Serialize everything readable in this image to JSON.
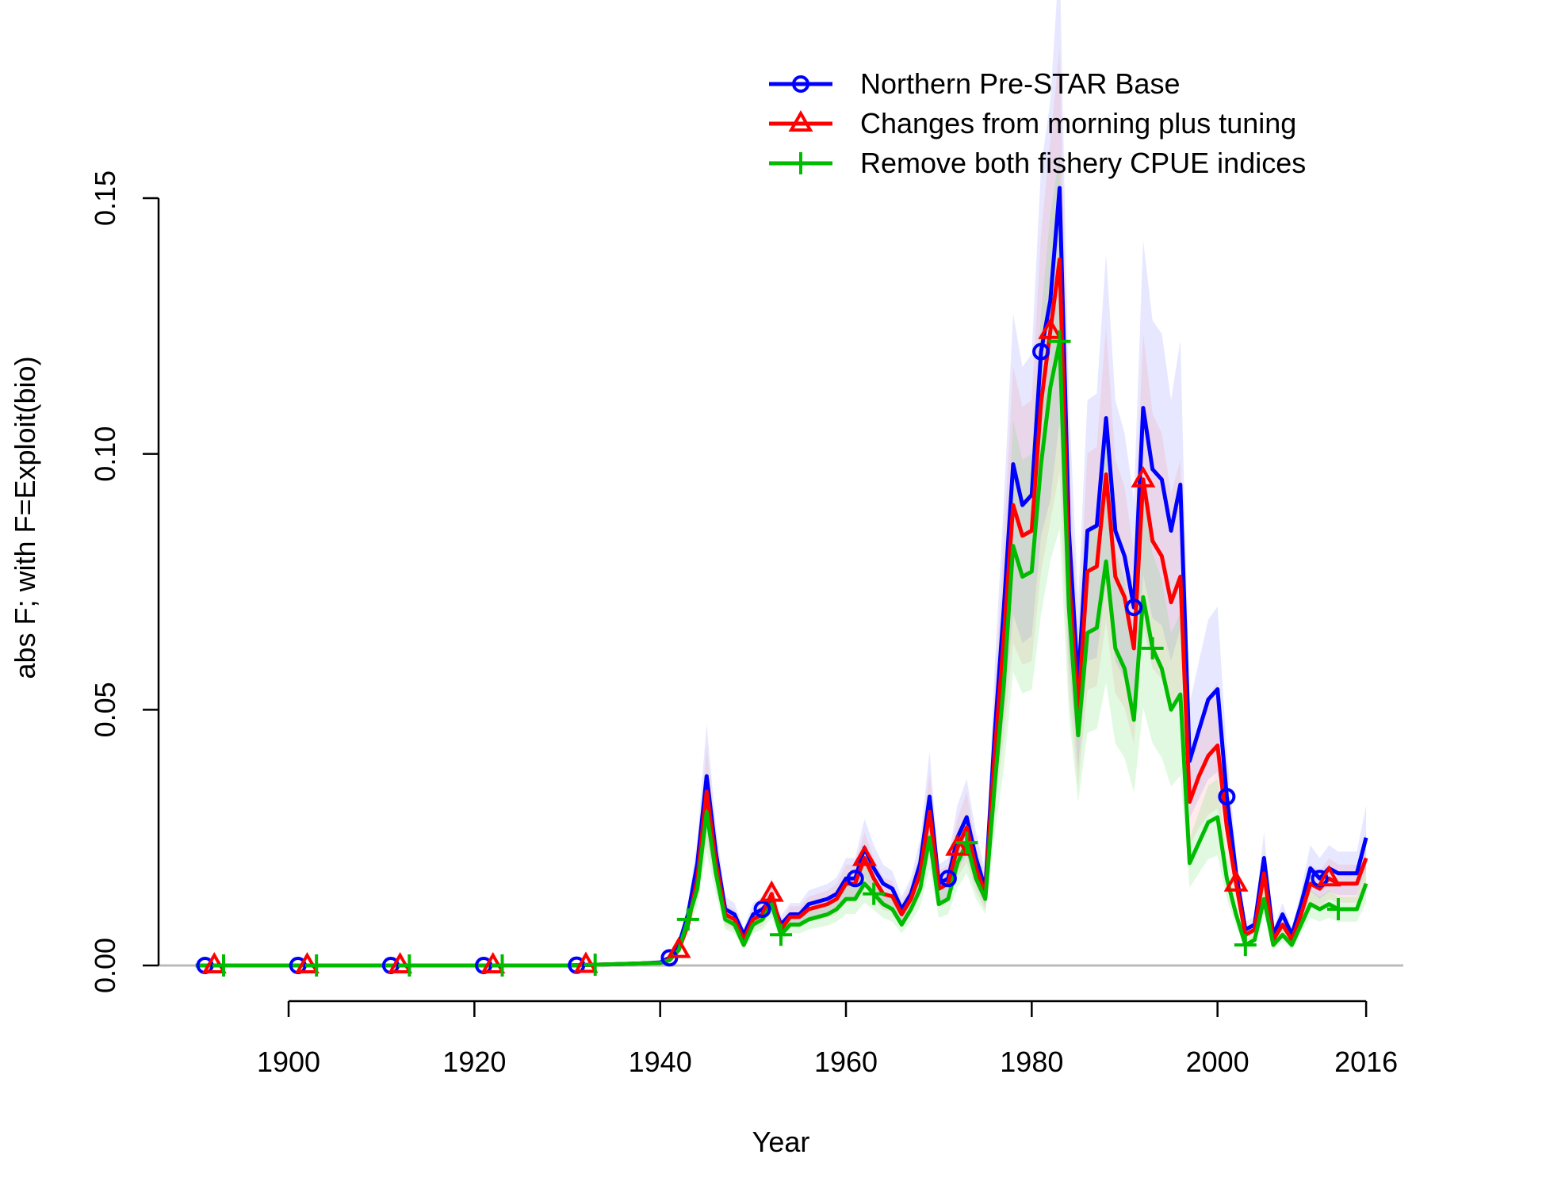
{
  "chart_data": {
    "type": "line",
    "title": "",
    "xlabel": "Year",
    "ylabel": "abs F; with F=Exploit(bio)",
    "xlim": [
      1886,
      2020
    ],
    "ylim": [
      0,
      0.15
    ],
    "x_ticks": [
      1900,
      1920,
      1940,
      1960,
      1980,
      2000,
      2016
    ],
    "x_tick_labels": [
      "1900",
      "1920",
      "1940",
      "1960",
      "1980",
      "2000",
      "2016"
    ],
    "y_ticks": [
      0,
      0.05,
      0.1,
      0.15
    ],
    "y_tick_labels": [
      "0.00",
      "0.05",
      "0.10",
      "0.15"
    ],
    "grid": false,
    "legend_position": "top-right",
    "zero_line": true,
    "x": [
      1890,
      1892,
      1894,
      1896,
      1898,
      1900,
      1902,
      1904,
      1906,
      1908,
      1910,
      1912,
      1914,
      1916,
      1918,
      1920,
      1922,
      1924,
      1926,
      1928,
      1930,
      1932,
      1934,
      1936,
      1938,
      1940,
      1941,
      1942,
      1943,
      1944,
      1945,
      1946,
      1947,
      1948,
      1949,
      1950,
      1951,
      1952,
      1953,
      1954,
      1955,
      1956,
      1957,
      1958,
      1959,
      1960,
      1961,
      1962,
      1963,
      1964,
      1965,
      1966,
      1967,
      1968,
      1969,
      1970,
      1971,
      1972,
      1973,
      1974,
      1975,
      1976,
      1977,
      1978,
      1979,
      1980,
      1981,
      1982,
      1983,
      1984,
      1985,
      1986,
      1987,
      1988,
      1989,
      1990,
      1991,
      1992,
      1993,
      1994,
      1995,
      1996,
      1997,
      1998,
      1999,
      2000,
      2001,
      2002,
      2003,
      2004,
      2005,
      2006,
      2007,
      2008,
      2009,
      2010,
      2011,
      2012,
      2013,
      2014,
      2015,
      2016
    ],
    "series": [
      {
        "name": "Northern Pre-STAR Base",
        "color": "#0000ff",
        "marker": "circle",
        "marker_years": [
          1891,
          1901,
          1911,
          1921,
          1931,
          1941,
          1951,
          1961,
          1971,
          1981,
          1991,
          2001,
          2011
        ],
        "values": [
          0,
          0,
          0,
          0,
          0,
          0,
          0,
          0,
          0,
          0,
          0,
          0,
          0,
          0,
          0,
          0,
          0,
          0,
          0,
          0,
          0,
          0.0001,
          0.0002,
          0.0003,
          0.0004,
          0.0006,
          0.0015,
          0.004,
          0.01,
          0.02,
          0.037,
          0.022,
          0.011,
          0.01,
          0.006,
          0.01,
          0.011,
          0.013,
          0.008,
          0.01,
          0.01,
          0.012,
          0.0125,
          0.013,
          0.014,
          0.017,
          0.017,
          0.023,
          0.019,
          0.016,
          0.015,
          0.011,
          0.014,
          0.02,
          0.033,
          0.016,
          0.017,
          0.025,
          0.029,
          0.021,
          0.015,
          0.045,
          0.07,
          0.098,
          0.09,
          0.092,
          0.12,
          0.13,
          0.152,
          0.085,
          0.055,
          0.085,
          0.086,
          0.107,
          0.085,
          0.08,
          0.07,
          0.109,
          0.097,
          0.095,
          0.085,
          0.094,
          0.04,
          0.046,
          0.052,
          0.054,
          0.033,
          0.018,
          0.007,
          0.008,
          0.021,
          0.006,
          0.01,
          0.006,
          0.012,
          0.019,
          0.017,
          0.019,
          0.018,
          0.018,
          0.018,
          0.025
        ]
      },
      {
        "name": "Changes from morning plus tuning",
        "color": "#ff0000",
        "marker": "triangle",
        "marker_years": [
          1892,
          1902,
          1912,
          1922,
          1932,
          1942,
          1952,
          1962,
          1972,
          1982,
          1992,
          2002,
          2012
        ],
        "values": [
          0,
          0,
          0,
          0,
          0,
          0,
          0,
          0,
          0,
          0,
          0,
          0,
          0,
          0,
          0,
          0,
          0,
          0,
          0,
          0,
          0,
          0.0001,
          0.0002,
          0.0003,
          0.0004,
          0.0005,
          0.0012,
          0.003,
          0.008,
          0.017,
          0.034,
          0.02,
          0.01,
          0.009,
          0.005,
          0.009,
          0.01,
          0.014,
          0.007,
          0.0095,
          0.0095,
          0.011,
          0.0115,
          0.012,
          0.013,
          0.016,
          0.016,
          0.021,
          0.017,
          0.014,
          0.0135,
          0.01,
          0.013,
          0.018,
          0.03,
          0.015,
          0.016,
          0.023,
          0.027,
          0.019,
          0.014,
          0.041,
          0.064,
          0.09,
          0.084,
          0.085,
          0.11,
          0.124,
          0.138,
          0.076,
          0.05,
          0.077,
          0.078,
          0.096,
          0.076,
          0.072,
          0.062,
          0.095,
          0.083,
          0.08,
          0.071,
          0.076,
          0.032,
          0.037,
          0.041,
          0.043,
          0.027,
          0.016,
          0.006,
          0.007,
          0.018,
          0.005,
          0.008,
          0.005,
          0.01,
          0.016,
          0.015,
          0.017,
          0.016,
          0.016,
          0.016,
          0.021
        ]
      },
      {
        "name": "Remove both fishery CPUE indices",
        "color": "#00bb00",
        "marker": "plus",
        "marker_years": [
          1893,
          1903,
          1913,
          1923,
          1933,
          1943,
          1953,
          1963,
          1973,
          1983,
          1993,
          2003,
          2013
        ],
        "values": [
          0,
          0,
          0,
          0,
          0,
          0,
          0,
          0,
          0,
          0,
          0,
          0,
          0,
          0,
          0,
          0,
          0,
          0,
          0,
          0,
          0,
          0.0001,
          0.0002,
          0.0003,
          0.0004,
          0.0005,
          0.001,
          0.003,
          0.009,
          0.015,
          0.03,
          0.018,
          0.009,
          0.008,
          0.004,
          0.008,
          0.009,
          0.012,
          0.006,
          0.008,
          0.008,
          0.009,
          0.0095,
          0.01,
          0.011,
          0.013,
          0.013,
          0.016,
          0.014,
          0.012,
          0.011,
          0.008,
          0.011,
          0.015,
          0.025,
          0.012,
          0.013,
          0.02,
          0.024,
          0.017,
          0.013,
          0.035,
          0.055,
          0.082,
          0.076,
          0.077,
          0.098,
          0.113,
          0.122,
          0.07,
          0.045,
          0.065,
          0.066,
          0.079,
          0.062,
          0.058,
          0.048,
          0.072,
          0.062,
          0.058,
          0.05,
          0.053,
          0.02,
          0.024,
          0.028,
          0.029,
          0.017,
          0.01,
          0.004,
          0.005,
          0.013,
          0.004,
          0.006,
          0.004,
          0.008,
          0.012,
          0.011,
          0.012,
          0.011,
          0.011,
          0.011,
          0.016
        ]
      }
    ]
  }
}
